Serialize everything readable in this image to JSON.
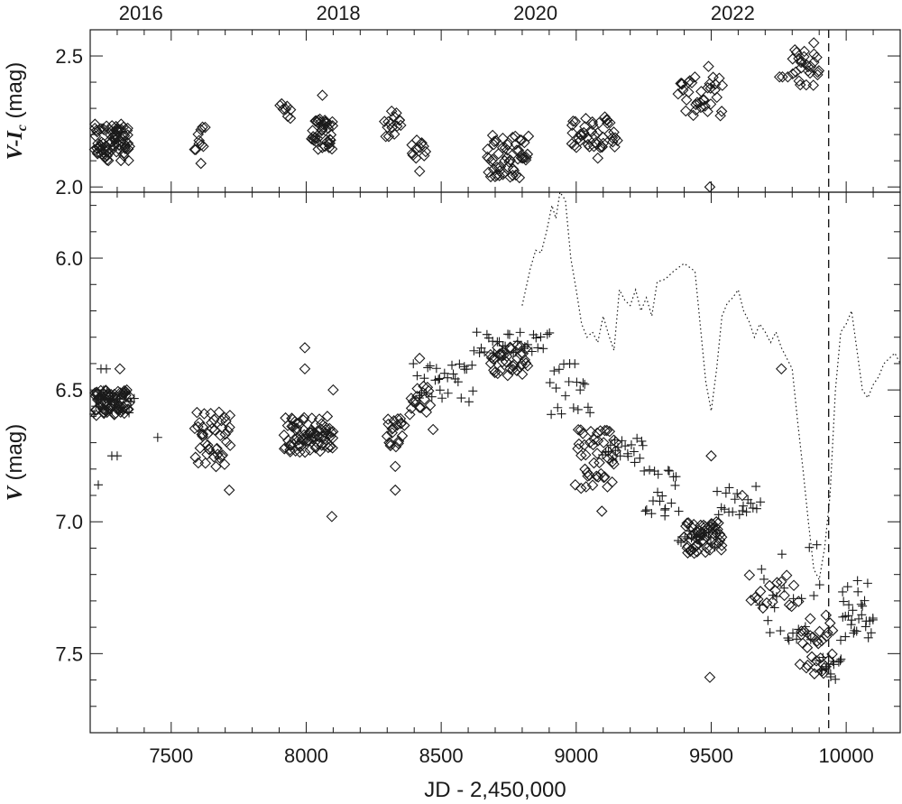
{
  "chart_data": {
    "type": "scatter",
    "x_axis": {
      "label": "JD - 2,450,000",
      "range": [
        7200,
        10200
      ],
      "ticks": [
        7500,
        8000,
        8500,
        9000,
        9500,
        10000
      ],
      "minor_step": 100
    },
    "top_axis": {
      "year_labels": [
        "2016",
        "2018",
        "2020",
        "2022"
      ],
      "year_jd": [
        7388,
        8119,
        8849,
        9580
      ]
    },
    "reference_line": {
      "jd": 9935,
      "style": "dashed"
    },
    "panels": [
      {
        "id": "color-index",
        "ylabel_main": "V-I",
        "ylabel_sub": "c",
        "ylabel_unit": " (mag)",
        "y_range": [
          1.98,
          2.6
        ],
        "y_inverted": false,
        "y_ticks": [
          2.0,
          2.5
        ],
        "y_minor_step": 0.1,
        "series": [
          {
            "marker": "diamond",
            "groups": [
              {
                "x": [
                  7215,
                  7345
                ],
                "y": [
                  2.1,
                  2.24
                ],
                "n": 80
              },
              {
                "x": [
                  7590,
                  7625
                ],
                "y": [
                  2.13,
                  2.23
                ],
                "n": 10
              },
              {
                "x": [
                  7905,
                  7945
                ],
                "y": [
                  2.26,
                  2.33
                ],
                "n": 8
              },
              {
                "x": [
                  8020,
                  8100
                ],
                "y": [
                  2.14,
                  2.26
                ],
                "n": 40
              },
              {
                "x": [
                  8290,
                  8350
                ],
                "y": [
                  2.18,
                  2.29
                ],
                "n": 15
              },
              {
                "x": [
                  8390,
                  8440
                ],
                "y": [
                  2.11,
                  2.18
                ],
                "n": 12
              },
              {
                "x": [
                  8670,
                  8820
                ],
                "y": [
                  2.03,
                  2.2
                ],
                "n": 55
              },
              {
                "x": [
                  8980,
                  9150
                ],
                "y": [
                  2.15,
                  2.27
                ],
                "n": 45
              },
              {
                "x": [
                  9380,
                  9540
                ],
                "y": [
                  2.27,
                  2.42
                ],
                "n": 35
              },
              {
                "x": [
                  9750,
                  9780
                ],
                "y": [
                  2.42,
                  2.42
                ],
                "n": 3
              },
              {
                "x": [
                  9800,
                  9900
                ],
                "y": [
                  2.38,
                  2.53
                ],
                "n": 25
              }
            ],
            "outliers": [
              [
                7610,
                2.09
              ],
              [
                8060,
                2.35
              ],
              [
                8420,
                2.06
              ],
              [
                9080,
                2.11
              ],
              [
                9495,
                2.0
              ],
              [
                9490,
                2.46
              ],
              [
                9830,
                2.39
              ],
              [
                9880,
                2.55
              ]
            ]
          }
        ]
      },
      {
        "id": "v-magnitude",
        "ylabel_main": "V",
        "ylabel_sub": "",
        "ylabel_unit": " (mag)",
        "y_range": [
          5.75,
          7.8
        ],
        "y_inverted": true,
        "y_ticks": [
          6.0,
          6.5,
          7.0,
          7.5
        ],
        "y_minor_step": 0.1,
        "series": [
          {
            "marker": "diamond",
            "groups": [
              {
                "x": [
                  7215,
                  7345
                ],
                "y": [
                  6.5,
                  6.6
                ],
                "n": 70
              },
              {
                "x": [
                  7590,
                  7720
                ],
                "y": [
                  6.58,
                  6.8
                ],
                "n": 45
              },
              {
                "x": [
                  7920,
                  8100
                ],
                "y": [
                  6.6,
                  6.74
                ],
                "n": 75
              },
              {
                "x": [
                  8300,
                  8360
                ],
                "y": [
                  6.6,
                  6.72
                ],
                "n": 20
              },
              {
                "x": [
                  8380,
                  8460
                ],
                "y": [
                  6.48,
                  6.6
                ],
                "n": 15
              },
              {
                "x": [
                  8680,
                  8820
                ],
                "y": [
                  6.33,
                  6.45
                ],
                "n": 40
              },
              {
                "x": [
                  9000,
                  9150
                ],
                "y": [
                  6.65,
                  6.88
                ],
                "n": 45
              },
              {
                "x": [
                  9400,
                  9540
                ],
                "y": [
                  7.0,
                  7.12
                ],
                "n": 55
              },
              {
                "x": [
                  9640,
                  9820
                ],
                "y": [
                  7.2,
                  7.34
                ],
                "n": 18
              },
              {
                "x": [
                  9830,
                  9950
                ],
                "y": [
                  7.35,
                  7.6
                ],
                "n": 30
              }
            ],
            "outliers": [
              [
                7310,
                6.42
              ],
              [
                7715,
                6.88
              ],
              [
                7995,
                6.34
              ],
              [
                7995,
                6.42
              ],
              [
                8095,
                6.98
              ],
              [
                8100,
                6.5
              ],
              [
                8330,
                6.79
              ],
              [
                8330,
                6.88
              ],
              [
                8420,
                6.38
              ],
              [
                8470,
                6.65
              ],
              [
                9095,
                6.96
              ],
              [
                9495,
                7.59
              ],
              [
                9500,
                6.75
              ],
              [
                9760,
                6.42
              ],
              [
                9615,
                6.9
              ]
            ]
          },
          {
            "marker": "plus",
            "groups": [
              {
                "x": [
                  7215,
                  7360
                ],
                "y": [
                  6.5,
                  6.6
                ],
                "n": 20
              },
              {
                "x": [
                  8400,
                  8620
                ],
                "y": [
                  6.4,
                  6.55
                ],
                "n": 30
              },
              {
                "x": [
                  8620,
                  8900
                ],
                "y": [
                  6.28,
                  6.36
                ],
                "n": 30
              },
              {
                "x": [
                  8900,
                  9050
                ],
                "y": [
                  6.4,
                  6.6
                ],
                "n": 20
              },
              {
                "x": [
                  9100,
                  9250
                ],
                "y": [
                  6.68,
                  6.78
                ],
                "n": 20
              },
              {
                "x": [
                  9250,
                  9380
                ],
                "y": [
                  6.8,
                  6.98
                ],
                "n": 20
              },
              {
                "x": [
                  9380,
                  9520
                ],
                "y": [
                  7.02,
                  7.1
                ],
                "n": 15
              },
              {
                "x": [
                  9520,
                  9680
                ],
                "y": [
                  6.86,
                  6.98
                ],
                "n": 20
              },
              {
                "x": [
                  9680,
                  9900
                ],
                "y": [
                  7.08,
                  7.5
                ],
                "n": 25
              },
              {
                "x": [
                  9900,
                  9980
                ],
                "y": [
                  7.5,
                  7.62
                ],
                "n": 15
              },
              {
                "x": [
                  9980,
                  10100
                ],
                "y": [
                  7.2,
                  7.45
                ],
                "n": 30
              }
            ],
            "outliers": [
              [
                7230,
                6.86
              ],
              [
                7280,
                6.75
              ],
              [
                7300,
                6.75
              ],
              [
                7450,
                6.68
              ],
              [
                7240,
                6.42
              ],
              [
                7260,
                6.42
              ],
              [
                8490,
                6.46
              ],
              [
                9330,
                6.95
              ]
            ]
          },
          {
            "marker": "dotted-line",
            "x": [
              8800,
              8830,
              8850,
              8870,
              8890,
              8910,
              8925,
              8940,
              8960,
              8980,
              9000,
              9020,
              9040,
              9060,
              9080,
              9100,
              9120,
              9140,
              9160,
              9180,
              9200,
              9220,
              9240,
              9260,
              9280,
              9300,
              9330,
              9360,
              9400,
              9440,
              9480,
              9500,
              9520,
              9540,
              9560,
              9580,
              9600,
              9620,
              9640,
              9660,
              9680,
              9700,
              9720,
              9740,
              9760,
              9780,
              9800,
              9820,
              9840,
              9860,
              9880,
              9900,
              9920,
              9940,
              9960,
              9980,
              10000,
              10020,
              10040,
              10060,
              10080,
              10100,
              10120,
              10140,
              10160,
              10180,
              10200
            ],
            "y": [
              6.18,
              6.04,
              5.97,
              5.98,
              5.9,
              5.8,
              5.85,
              5.75,
              5.78,
              6.0,
              6.12,
              6.25,
              6.3,
              6.28,
              6.32,
              6.22,
              6.29,
              6.35,
              6.12,
              6.16,
              6.18,
              6.12,
              6.2,
              6.15,
              6.22,
              6.09,
              6.08,
              6.05,
              6.02,
              6.05,
              6.47,
              6.58,
              6.42,
              6.22,
              6.17,
              6.15,
              6.12,
              6.2,
              6.24,
              6.3,
              6.25,
              6.28,
              6.32,
              6.28,
              6.34,
              6.38,
              6.42,
              6.62,
              6.8,
              7.0,
              7.18,
              7.22,
              7.1,
              6.9,
              6.5,
              6.28,
              6.25,
              6.2,
              6.35,
              6.5,
              6.53,
              6.48,
              6.45,
              6.4,
              6.38,
              6.36,
              6.4
            ]
          }
        ]
      }
    ]
  }
}
